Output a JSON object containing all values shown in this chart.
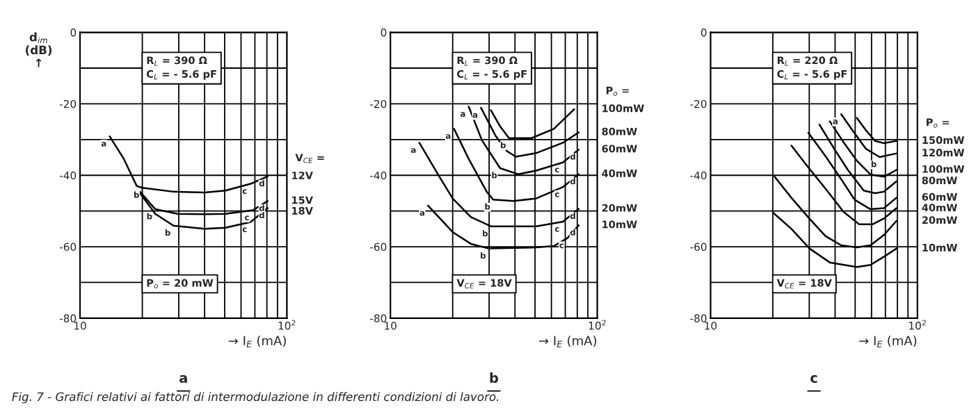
{
  "chart_data": [
    {
      "type": "line",
      "title": "a",
      "xlabel": "→ I$_{E}$ (mA)",
      "ylabel": "d$_{im}$\n(dB)\n↑",
      "legend_title": "V$_{CE}$ =",
      "log": "x",
      "xlim": [
        10,
        100
      ],
      "ylim": [
        -80,
        0
      ],
      "xticks": [
        10,
        {
          "value": 20,
          "label": null
        },
        {
          "value": 30,
          "label": null
        },
        {
          "value": 40,
          "label": null
        },
        {
          "value": 50,
          "label": null
        },
        {
          "value": 60,
          "label": null
        },
        {
          "value": 70,
          "label": null
        },
        {
          "value": 80,
          "label": null
        },
        {
          "value": 90,
          "label": null
        },
        {
          "value": 100,
          "label": "10$^{2}$"
        }
      ],
      "yticks": [
        0,
        {
          "value": -10,
          "label": null
        },
        -20,
        {
          "value": -30,
          "label": null
        },
        -40,
        {
          "value": -50,
          "label": null
        },
        -60,
        {
          "value": -70,
          "label": null
        },
        -80
      ],
      "grid": true,
      "series": [
        {
          "name": "12V",
          "color": "#000000",
          "x": [
            13.9,
            16.2,
            18.8,
            20.0,
            28.3,
            40.0,
            50.4,
            66.7,
            80.7
          ],
          "values": [
            -29.1,
            -35.2,
            -43.0,
            -43.5,
            -44.6,
            -44.8,
            -44.3,
            -42.4,
            -40.3
          ]
        },
        {
          "name": "15V",
          "color": "#000000",
          "x": [
            19.5,
            23.1,
            29.7,
            40.0,
            50.4,
            68.4,
            80.7
          ],
          "values": [
            -44.6,
            -49.5,
            -50.8,
            -50.9,
            -50.8,
            -49.8,
            -47.2
          ]
        },
        {
          "name": "18V",
          "color": "#000000",
          "x": [
            19.5,
            23.1,
            28.3,
            40.0,
            50.4,
            66.7,
            80.7
          ],
          "values": [
            -45.0,
            -50.8,
            -54.1,
            -55.0,
            -54.7,
            -53.1,
            -49.2
          ]
        }
      ],
      "annotations": [
        "R$_{L}$ = 390 Ω\nC$_{L}$ = - 5.6 pF",
        "P$_{o}$ = 20 mW",
        "Fig. 7 - Grafici relativi ai fattori di intermodulazione in differenti condizioni di lavoro.",
        {
          "text": "a",
          "x": 13.9,
          "y": -29.1
        },
        {
          "text": "b",
          "x": 20.0,
          "y": -43.5
        },
        {
          "text": "b",
          "x": 23.1,
          "y": -49.5
        },
        {
          "text": "b",
          "x": 28.3,
          "y": -54.1
        },
        {
          "text": "c",
          "x": 66.7,
          "y": -42.4
        },
        {
          "text": "c",
          "x": 68.4,
          "y": -49.8
        },
        {
          "text": "c",
          "x": 66.7,
          "y": -53.1
        },
        {
          "text": "d",
          "x": 80.7,
          "y": -40.3
        },
        {
          "text": "d",
          "x": 80.7,
          "y": -47.2
        },
        {
          "text": "d",
          "x": 80.7,
          "y": -49.2
        }
      ]
    },
    {
      "type": "line",
      "title": "b",
      "xlabel": "→ I$_{E}$ (mA)",
      "legend_title": "P$_{o}$ =",
      "log": "x",
      "xlim": [
        10,
        100
      ],
      "ylim": [
        -80,
        0
      ],
      "xticks": [
        10,
        {
          "value": 20,
          "label": null
        },
        {
          "value": 30,
          "label": null
        },
        {
          "value": 40,
          "label": null
        },
        {
          "value": 50,
          "label": null
        },
        {
          "value": 60,
          "label": null
        },
        {
          "value": 70,
          "label": null
        },
        {
          "value": 80,
          "label": null
        },
        {
          "value": 90,
          "label": null
        },
        {
          "value": 100,
          "label": "10$^{2}$"
        }
      ],
      "yticks": [
        0,
        {
          "value": -10,
          "label": null
        },
        -20,
        {
          "value": -30,
          "label": null
        },
        -40,
        {
          "value": -50,
          "label": null
        },
        -60,
        {
          "value": -70,
          "label": null
        },
        -80
      ],
      "grid": true,
      "series": [
        {
          "name": "100mW",
          "color": "#000000",
          "x": [
            30.6,
            33.9,
            37.4,
            48.1,
            61.7,
            77.3
          ],
          "values": [
            -21.8,
            -26.3,
            -29.6,
            -29.6,
            -27.0,
            -21.5
          ]
        },
        {
          "name": "80mW",
          "color": "#000000",
          "x": [
            27.4,
            32.2,
            36.5,
            40.4,
            50.6,
            68.2,
            81.3
          ],
          "values": [
            -21.1,
            -28.9,
            -33.2,
            -34.8,
            -33.8,
            -30.9,
            -28.0
          ]
        },
        {
          "name": "60mW",
          "color": "#000000",
          "x": [
            23.9,
            27.7,
            33.9,
            41.4,
            50.6,
            68.2,
            81.3
          ],
          "values": [
            -20.8,
            -30.2,
            -38.0,
            -39.7,
            -38.7,
            -36.4,
            -32.8
          ]
        },
        {
          "name": "40mW",
          "color": "#000000",
          "x": [
            20.3,
            23.9,
            29.2,
            31.4,
            39.4,
            50.6,
            68.2,
            81.3
          ],
          "values": [
            -27.0,
            -35.4,
            -44.6,
            -46.8,
            -47.2,
            -46.5,
            -43.3,
            -39.7
          ]
        },
        {
          "name": "20mW",
          "color": "#000000",
          "x": [
            13.8,
            16.8,
            20.0,
            24.5,
            30.6,
            50.6,
            68.2,
            81.3
          ],
          "values": [
            -30.9,
            -39.3,
            -46.5,
            -51.7,
            -54.3,
            -54.3,
            -53.0,
            -49.4
          ]
        },
        {
          "name": "10mW",
          "color": "#000000",
          "x": [
            15.2,
            20.0,
            24.5,
            29.9,
            50.6,
            61.7,
            71.7,
            81.3
          ],
          "values": [
            -48.5,
            -55.9,
            -59.2,
            -60.5,
            -60.2,
            -59.8,
            -57.6,
            -54.0
          ]
        }
      ],
      "annotations": [
        "R$_{L}$ = 390 Ω\nC$_{L}$ = - 5.6 pF",
        "V$_{CE}$ = 18V",
        {
          "text": "a",
          "x": 13.8,
          "y": -30.9
        },
        {
          "text": "a",
          "x": 15.2,
          "y": -48.5
        },
        {
          "text": "a",
          "x": 20.3,
          "y": -27.0
        },
        {
          "text": "a",
          "x": 23.9,
          "y": -20.8
        },
        {
          "text": "a",
          "x": 27.4,
          "y": -21.1
        },
        {
          "text": "b",
          "x": 37.4,
          "y": -29.6
        },
        {
          "text": "b",
          "x": 33.9,
          "y": -38.0
        },
        {
          "text": "b",
          "x": 31.4,
          "y": -46.8
        },
        {
          "text": "b",
          "x": 30.6,
          "y": -54.3
        },
        {
          "text": "b",
          "x": 29.9,
          "y": -60.5
        },
        {
          "text": "c",
          "x": 68.2,
          "y": -36.4
        },
        {
          "text": "c",
          "x": 68.2,
          "y": -43.3
        },
        {
          "text": "c",
          "x": 68.2,
          "y": -53.0
        },
        {
          "text": "c",
          "x": 71.7,
          "y": -57.6
        },
        {
          "text": "d",
          "x": 81.3,
          "y": -32.8
        },
        {
          "text": "d",
          "x": 81.3,
          "y": -39.7
        },
        {
          "text": "d",
          "x": 81.3,
          "y": -49.4
        },
        {
          "text": "d",
          "x": 81.3,
          "y": -54.0
        }
      ]
    },
    {
      "type": "line",
      "title": "c",
      "xlabel": "→ I$_{E}$ (mA)",
      "legend_title": "P$_{o}$ =",
      "log": "x",
      "xlim": [
        10,
        100
      ],
      "ylim": [
        -80,
        0
      ],
      "xticks": [
        10,
        {
          "value": 20,
          "label": null
        },
        {
          "value": 30,
          "label": null
        },
        {
          "value": 40,
          "label": null
        },
        {
          "value": 50,
          "label": null
        },
        {
          "value": 60,
          "label": null
        },
        {
          "value": 70,
          "label": null
        },
        {
          "value": 80,
          "label": null
        },
        {
          "value": 90,
          "label": null
        },
        {
          "value": 100,
          "label": "10$^{2}$"
        }
      ],
      "yticks": [
        0,
        {
          "value": -10,
          "label": null
        },
        -20,
        {
          "value": -30,
          "label": null
        },
        -40,
        {
          "value": -50,
          "label": null
        },
        -60,
        {
          "value": -70,
          "label": null
        },
        -80
      ],
      "grid": true,
      "series": [
        {
          "name": "150mW",
          "color": "#000000",
          "x": [
            50.9,
            56.4,
            62.4,
            68.9,
            79.1
          ],
          "values": [
            -23.9,
            -27.4,
            -30.4,
            -31.0,
            -30.4
          ]
        },
        {
          "name": "120mW",
          "color": "#000000",
          "x": [
            42.8,
            48.5,
            56.4,
            65.6,
            79.1
          ],
          "values": [
            -22.9,
            -27.4,
            -32.6,
            -34.9,
            -33.9
          ]
        },
        {
          "name": "100mW",
          "color": "#000000",
          "x": [
            37.7,
            43.9,
            50.9,
            59.3,
            68.9,
            79.1
          ],
          "values": [
            -24.9,
            -30.7,
            -35.9,
            -39.8,
            -40.4,
            -38.5
          ]
        },
        {
          "name": "80mW",
          "color": "#000000",
          "x": [
            33.6,
            39.6,
            46.1,
            55.0,
            62.4,
            68.9,
            79.1
          ],
          "values": [
            -25.8,
            -32.6,
            -38.5,
            -44.3,
            -45.0,
            -44.6,
            -41.7
          ]
        },
        {
          "name": "60mW",
          "color": "#000000",
          "x": [
            29.7,
            35.9,
            42.8,
            49.8,
            59.3,
            68.9,
            79.1
          ],
          "values": [
            -28.1,
            -34.6,
            -41.1,
            -46.9,
            -49.5,
            -49.2,
            -46.3
          ]
        },
        {
          "name": "40mW",
          "color": "#000000",
          "x": [
            24.6,
            29.7,
            35.9,
            43.9,
            52.2,
            60.8,
            68.9,
            79.1
          ],
          "values": [
            -31.7,
            -37.8,
            -43.7,
            -50.2,
            -53.7,
            -53.7,
            -52.1,
            -49.2
          ]
        },
        {
          "name": "20mW",
          "color": "#000000",
          "x": [
            20.4,
            24.6,
            29.7,
            35.9,
            42.8,
            50.9,
            59.3,
            68.9,
            79.1
          ],
          "values": [
            -40.4,
            -46.3,
            -51.8,
            -57.0,
            -59.6,
            -60.2,
            -59.6,
            -56.7,
            -52.8
          ]
        },
        {
          "name": "10mW",
          "color": "#000000",
          "x": [
            20.1,
            24.6,
            30.1,
            37.7,
            50.9,
            59.3,
            68.9,
            79.1
          ],
          "values": [
            -50.5,
            -55.0,
            -60.5,
            -64.4,
            -65.7,
            -65.1,
            -62.8,
            -60.5
          ]
        }
      ],
      "annotations": [
        "R$_{L}$ = 220 Ω\nC$_{L}$ = - 5.6 pF",
        "V$_{CE}$ = 18V",
        {
          "text": "a",
          "x": 42.8,
          "y": -22.9
        },
        {
          "text": "b",
          "x": 65.6,
          "y": -34.9
        }
      ]
    }
  ]
}
